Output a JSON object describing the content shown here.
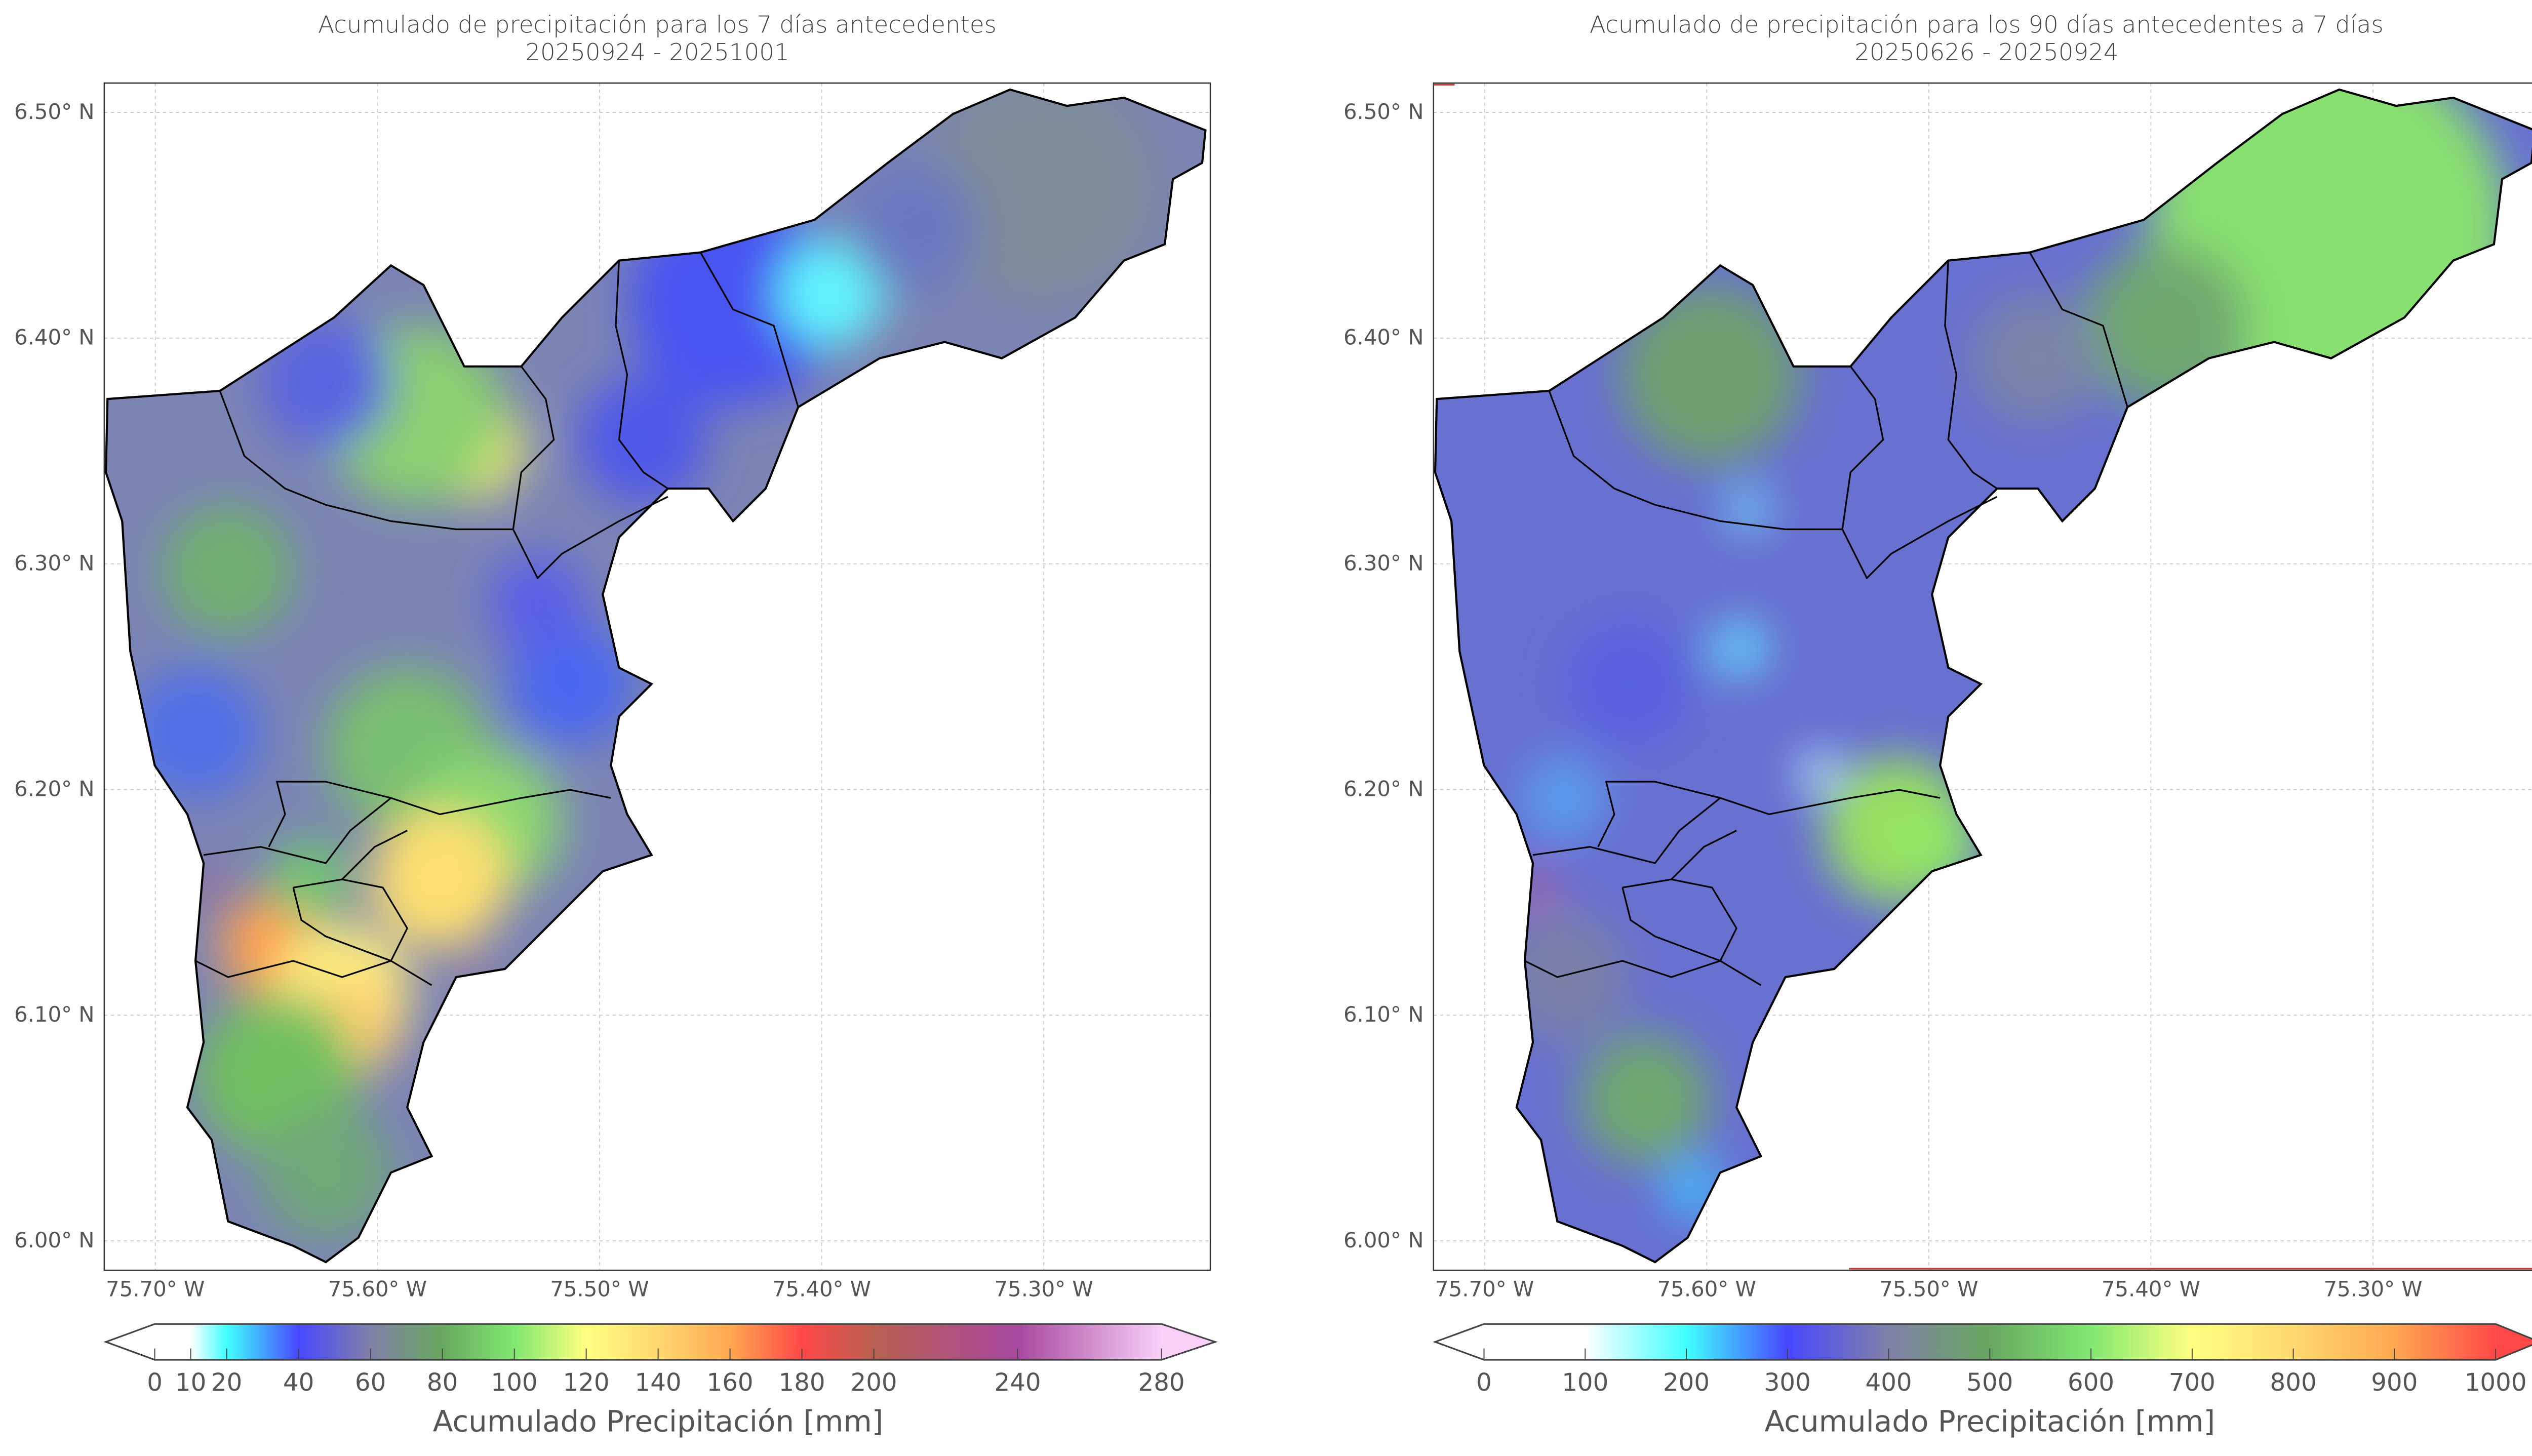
{
  "chart_data": [
    {
      "type": "heatmap",
      "title": "Acumulado de precipitación para los 7 días antecedentes",
      "subtitle": "20250924 - 20251001",
      "lat_ticks": [
        "6.50° N",
        "6.40° N",
        "6.30° N",
        "6.20° N",
        "6.10° N",
        "6.00° N"
      ],
      "lat_values": [
        6.5,
        6.4,
        6.3,
        6.2,
        6.1,
        6.0
      ],
      "lon_ticks": [
        "75.70° W",
        "75.60° W",
        "75.50° W",
        "75.40° W",
        "75.30° W"
      ],
      "lon_values": [
        -75.7,
        -75.6,
        -75.5,
        -75.4,
        -75.3
      ],
      "xlim": [
        -75.723,
        -75.225
      ],
      "ylim": [
        5.987,
        6.513
      ],
      "colorbar": {
        "label": "Acumulado Precipitación [mm]",
        "range": [
          0,
          280
        ],
        "ticks": [
          0,
          10,
          20,
          40,
          60,
          80,
          100,
          120,
          140,
          160,
          180,
          200,
          240,
          280
        ],
        "stops": [
          [
            0,
            "#ffffff"
          ],
          [
            10,
            "#ffffff"
          ],
          [
            20,
            "#40ffff"
          ],
          [
            40,
            "#4848ff"
          ],
          [
            60,
            "#8080a8"
          ],
          [
            80,
            "#68a860"
          ],
          [
            100,
            "#80e870"
          ],
          [
            120,
            "#ffff80"
          ],
          [
            140,
            "#ffd870"
          ],
          [
            160,
            "#ffa850"
          ],
          [
            180,
            "#ff4848"
          ],
          [
            200,
            "#b86050"
          ],
          [
            240,
            "#a848a0"
          ],
          [
            280,
            "#f8d0f8"
          ]
        ],
        "extend_min_color": "#ffffff",
        "extend_max_color": "#f8d0f8"
      }
    },
    {
      "type": "heatmap",
      "title": "Acumulado de precipitación para los 90 días antecedentes a 7 días",
      "subtitle": "20250626 - 20250924",
      "lat_ticks": [
        "6.50° N",
        "6.40° N",
        "6.30° N",
        "6.20° N",
        "6.10° N",
        "6.00° N"
      ],
      "lat_values": [
        6.5,
        6.4,
        6.3,
        6.2,
        6.1,
        6.0
      ],
      "lon_ticks": [
        "75.70° W",
        "75.60° W",
        "75.50° W",
        "75.40° W",
        "75.30° W"
      ],
      "lon_values": [
        -75.7,
        -75.6,
        -75.5,
        -75.4,
        -75.3
      ],
      "xlim": [
        -75.723,
        -75.225
      ],
      "ylim": [
        5.987,
        6.513
      ],
      "colorbar": {
        "label": "Acumulado Precipitación [mm]",
        "range": [
          0,
          1000
        ],
        "ticks": [
          0,
          100,
          200,
          300,
          400,
          500,
          600,
          700,
          800,
          900,
          1000
        ],
        "stops": [
          [
            0,
            "#ffffff"
          ],
          [
            100,
            "#ffffff"
          ],
          [
            200,
            "#40ffff"
          ],
          [
            300,
            "#4848ff"
          ],
          [
            400,
            "#8080a8"
          ],
          [
            500,
            "#68a860"
          ],
          [
            600,
            "#80e870"
          ],
          [
            700,
            "#ffff80"
          ],
          [
            800,
            "#ffd870"
          ],
          [
            900,
            "#ffa850"
          ],
          [
            1000,
            "#ff4848"
          ]
        ],
        "extend_min_color": "#ffffff",
        "extend_max_color": "#ff4848"
      }
    }
  ]
}
